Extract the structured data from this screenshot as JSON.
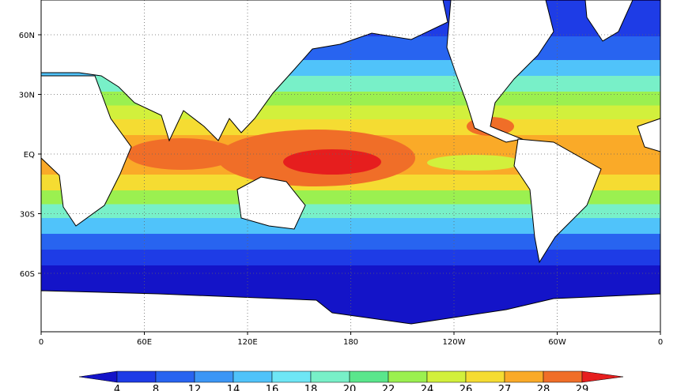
{
  "map": {
    "lat_labels": [
      "60N",
      "30N",
      "EQ",
      "30S",
      "60S"
    ],
    "lon_labels": [
      "0",
      "60E",
      "120E",
      "180",
      "120W",
      "60W",
      "0"
    ],
    "colorbar": {
      "levels": [
        4,
        8,
        12,
        14,
        16,
        18,
        20,
        22,
        24,
        26,
        27,
        28,
        29
      ],
      "colors": [
        "#1414c8",
        "#1e3ce6",
        "#2864f0",
        "#3c96f5",
        "#50c3fa",
        "#6ee6f5",
        "#78f0c8",
        "#5ae68c",
        "#9bf050",
        "#d2f03c",
        "#f5dc32",
        "#faaa28",
        "#f06e28",
        "#e61e1e"
      ]
    }
  }
}
